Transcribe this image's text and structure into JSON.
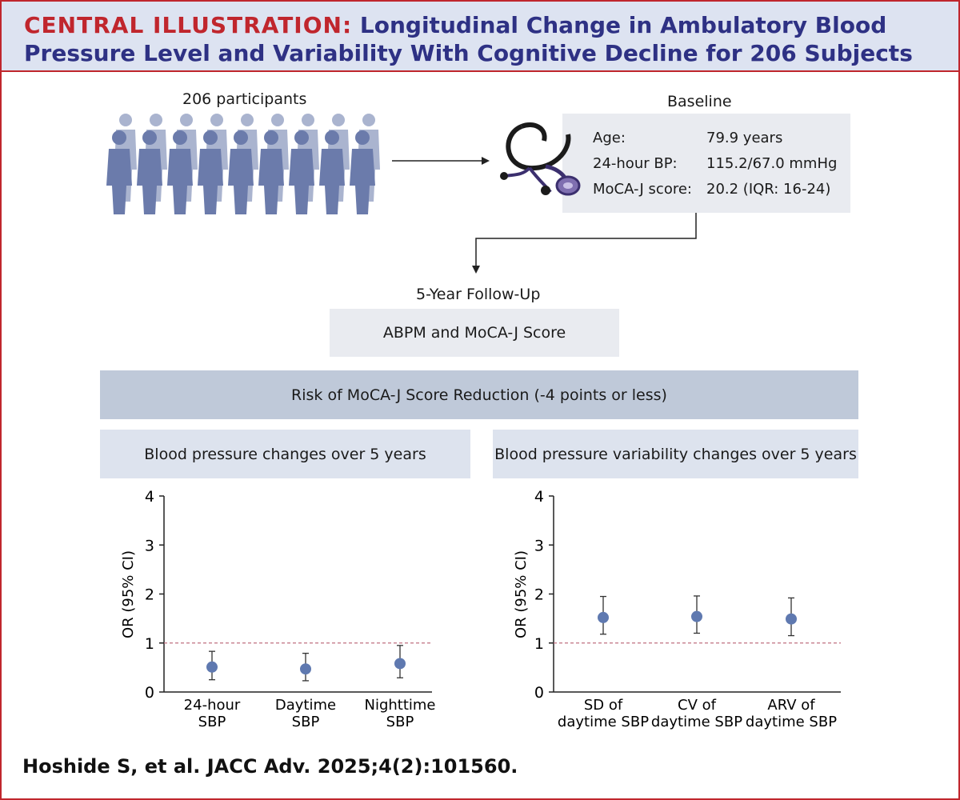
{
  "header": {
    "lead": "CENTRAL ILLUSTRATION:",
    "title": "Longitudinal Change in Ambulatory Blood Pressure Level and Variability With Cognitive Decline for 206 Subjects"
  },
  "participants": {
    "label": "206 participants"
  },
  "baseline": {
    "heading": "Baseline",
    "rows": [
      {
        "label": "Age:",
        "value": "79.9 years"
      },
      {
        "label": "24-hour BP:",
        "value": "115.2/67.0 mmHg"
      },
      {
        "label": "MoCA-J score:",
        "value": "20.2 (IQR: 16-24)"
      }
    ]
  },
  "followup": {
    "heading": "5-Year Follow-Up",
    "box": "ABPM and MoCA-J Score"
  },
  "risk_banner": "Risk of MoCA-J Score Reduction (-4 points or less)",
  "colors": {
    "accent": "#c0262d",
    "title": "#2e3184",
    "point": "#5f79b0",
    "ref_line": "#c07080",
    "banner": "#bfc9d9",
    "panel_header": "#dde3ee"
  },
  "chart_data": [
    {
      "type": "scatter",
      "title": "Blood pressure changes over 5 years",
      "ylabel": "OR (95% CI)",
      "ylim": [
        0,
        4
      ],
      "yticks": [
        "0",
        "1",
        "2",
        "3",
        "4"
      ],
      "reference_line": 1,
      "categories": [
        [
          "24-hour",
          "SBP"
        ],
        [
          "Daytime",
          "SBP"
        ],
        [
          "Nighttime",
          "SBP"
        ]
      ],
      "points": [
        {
          "or": 0.51,
          "lower": 0.25,
          "upper": 0.83
        },
        {
          "or": 0.47,
          "lower": 0.23,
          "upper": 0.79
        },
        {
          "or": 0.58,
          "lower": 0.29,
          "upper": 0.95
        }
      ]
    },
    {
      "type": "scatter",
      "title": "Blood pressure variability changes over 5 years",
      "ylabel": "OR (95% CI)",
      "ylim": [
        0,
        4
      ],
      "yticks": [
        "0",
        "1",
        "2",
        "3",
        "4"
      ],
      "reference_line": 1,
      "categories": [
        [
          "SD of",
          "daytime SBP"
        ],
        [
          "CV of",
          "daytime SBP"
        ],
        [
          "ARV of",
          "daytime SBP"
        ]
      ],
      "points": [
        {
          "or": 1.52,
          "lower": 1.18,
          "upper": 1.95
        },
        {
          "or": 1.54,
          "lower": 1.2,
          "upper": 1.96
        },
        {
          "or": 1.49,
          "lower": 1.15,
          "upper": 1.92
        }
      ]
    }
  ],
  "citation": "Hoshide S, et al. JACC Adv. 2025;4(2):101560."
}
